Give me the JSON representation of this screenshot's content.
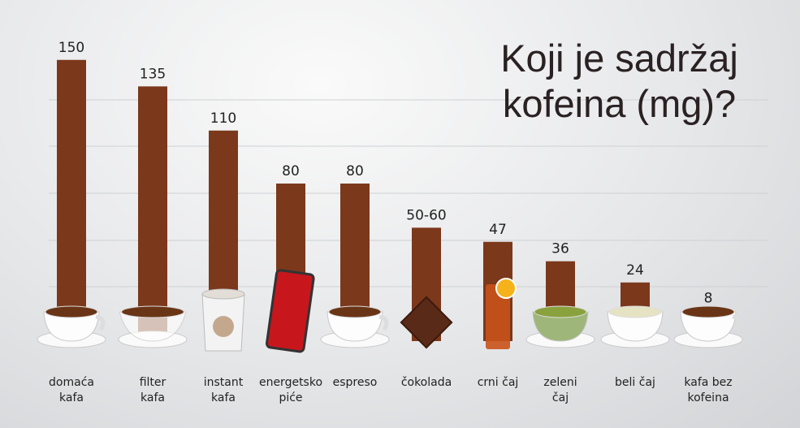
{
  "chart_data": {
    "type": "bar",
    "title": "Koji je sadržaj kofeina (mg)?",
    "categories": [
      "domaća\nkafa",
      "filter\nkafa",
      "instant\nkafa",
      "energetsko\npiće",
      "espreso",
      "čokolada",
      "crni čaj",
      "zeleni\nčaj",
      "beli čaj",
      "kafa bez\nkofeina"
    ],
    "values": [
      150,
      135,
      110,
      80,
      80,
      55,
      47,
      36,
      24,
      8
    ],
    "value_labels": [
      "150",
      "135",
      "110",
      "80",
      "80",
      "50-60",
      "47",
      "36",
      "24",
      "8"
    ],
    "color": "#7b381b",
    "ylim": [
      0,
      160
    ]
  }
}
